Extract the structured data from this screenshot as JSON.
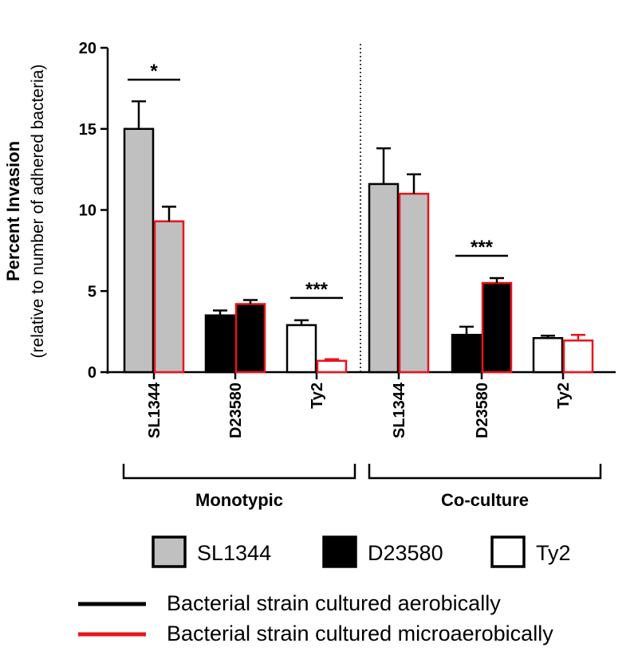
{
  "chart_data": {
    "type": "bar",
    "ylabel": "Percent Invasion",
    "ylabel_sub": "(relative to number of adhered bacteria)",
    "ylim": [
      0,
      20
    ],
    "yticks": [
      0,
      5,
      10,
      15,
      20
    ],
    "groups": [
      {
        "name": "Monotypic",
        "categories": [
          {
            "label": "SL1344",
            "strain": "SL1344",
            "aerobic": {
              "value": 15.0,
              "error": 1.7
            },
            "microaerobic": {
              "value": 9.3,
              "error": 0.9
            },
            "significance": "*"
          },
          {
            "label": "D23580",
            "strain": "D23580",
            "aerobic": {
              "value": 3.5,
              "error": 0.3
            },
            "microaerobic": {
              "value": 4.2,
              "error": 0.25
            },
            "significance": ""
          },
          {
            "label": "Ty2",
            "strain": "Ty2",
            "aerobic": {
              "value": 2.9,
              "error": 0.3
            },
            "microaerobic": {
              "value": 0.7,
              "error": 0.1
            },
            "significance": "***"
          }
        ]
      },
      {
        "name": "Co-culture",
        "categories": [
          {
            "label": "SL1344",
            "strain": "SL1344",
            "aerobic": {
              "value": 11.6,
              "error": 2.2
            },
            "microaerobic": {
              "value": 11.0,
              "error": 1.2
            },
            "significance": ""
          },
          {
            "label": "D23580",
            "strain": "D23580",
            "aerobic": {
              "value": 2.3,
              "error": 0.5
            },
            "microaerobic": {
              "value": 5.5,
              "error": 0.3
            },
            "significance": "***"
          },
          {
            "label": "Ty2",
            "strain": "Ty2",
            "aerobic": {
              "value": 2.1,
              "error": 0.15
            },
            "microaerobic": {
              "value": 1.95,
              "error": 0.35
            },
            "significance": ""
          }
        ]
      }
    ],
    "strain_legend": [
      {
        "name": "SL1344",
        "fill": "#c0c0c0"
      },
      {
        "name": "D23580",
        "fill": "#000000"
      },
      {
        "name": "Ty2",
        "fill": "#ffffff"
      }
    ],
    "condition_legend": [
      {
        "label": "Bacterial strain cultured aerobically",
        "color": "#000000"
      },
      {
        "label": "Bacterial strain cultured microaerobically",
        "color": "#e8141c"
      }
    ]
  }
}
